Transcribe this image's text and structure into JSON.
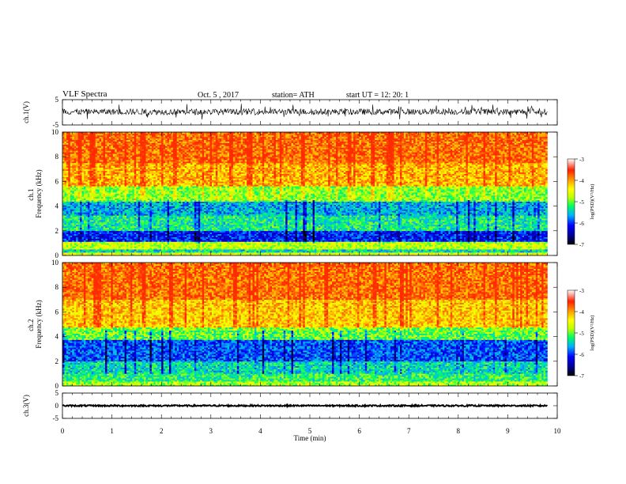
{
  "header": {
    "title": "VLF  Spectra",
    "date": "Oct. 5  , 2017",
    "station": "station= ATH",
    "start_ut": "start  UT  =   12: 20: 1"
  },
  "chart_data": [
    {
      "type": "line",
      "panel": "ch1-waveform",
      "ylabel": "ch.1(V)",
      "ylim": [
        -5,
        5
      ],
      "yticks": [
        "5",
        "-5"
      ],
      "xlim": [
        0,
        10
      ],
      "signal": {
        "baseline": 0.2,
        "amplitude_typical": 1.2,
        "amplitude_max": 3.2,
        "end_time": 9.8
      }
    },
    {
      "type": "heatmap",
      "panel": "ch1-spectrogram",
      "ylabel": "ch.1\nFrequency  (kHz)",
      "ylim": [
        0,
        10
      ],
      "yticks": [
        "0",
        "2",
        "4",
        "6",
        "8",
        "10"
      ],
      "xlim": [
        0,
        10
      ],
      "data_end_time": 9.8,
      "colorbar": {
        "label": "log(PSD)(V²/Hz)",
        "range": [
          -7,
          -3
        ],
        "ticks": [
          "-3",
          "-4",
          "-5",
          "-6",
          "-7"
        ]
      },
      "bands_log_psd": [
        {
          "f": [
            0,
            0.3
          ],
          "value": -4.6
        },
        {
          "f": [
            0.3,
            0.55
          ],
          "value": -5.4
        },
        {
          "f": [
            0.55,
            1.1
          ],
          "value": -4.7
        },
        {
          "f": [
            1.1,
            2.0
          ],
          "value": -6.1
        },
        {
          "f": [
            2.0,
            3.2
          ],
          "value": -5.3
        },
        {
          "f": [
            3.2,
            4.4
          ],
          "value": -5.6
        },
        {
          "f": [
            4.4,
            5.6
          ],
          "value": -4.9
        },
        {
          "f": [
            5.6,
            7.5
          ],
          "value": -4.1
        },
        {
          "f": [
            7.5,
            10.0
          ],
          "value": -3.8
        }
      ]
    },
    {
      "type": "heatmap",
      "panel": "ch2-spectrogram",
      "ylabel": "ch.2\nFrequency  (kHz)",
      "ylim": [
        0,
        10
      ],
      "yticks": [
        "0",
        "2",
        "4",
        "6",
        "8",
        "10"
      ],
      "xlim": [
        0,
        10
      ],
      "data_end_time": 9.8,
      "colorbar": {
        "label": "log(PSD)(V²/Hz)",
        "range": [
          -7,
          -3
        ],
        "ticks": [
          "-3",
          "-4",
          "-5",
          "-6",
          "-7"
        ]
      },
      "bands_log_psd": [
        {
          "f": [
            0,
            0.4
          ],
          "value": -4.8
        },
        {
          "f": [
            0.4,
            1.0
          ],
          "value": -5.2
        },
        {
          "f": [
            1.0,
            2.0
          ],
          "value": -5.4
        },
        {
          "f": [
            2.0,
            3.8
          ],
          "value": -5.9
        },
        {
          "f": [
            3.8,
            4.8
          ],
          "value": -5.0
        },
        {
          "f": [
            4.8,
            7.0
          ],
          "value": -4.2
        },
        {
          "f": [
            7.0,
            10.0
          ],
          "value": -3.8
        }
      ]
    },
    {
      "type": "line",
      "panel": "ch3-waveform",
      "ylabel": "ch.3(V)",
      "ylim": [
        -5,
        5
      ],
      "yticks": [
        "5",
        "0",
        "-5"
      ],
      "xlim": [
        0,
        10
      ],
      "xlabel": "Time  (min)",
      "xticks": [
        "0",
        "1",
        "2",
        "3",
        "4",
        "5",
        "6",
        "7",
        "8",
        "9",
        "10"
      ],
      "signal": {
        "baseline": 0.0,
        "amplitude_typical": 0.3,
        "end_time": 9.8
      }
    }
  ],
  "colors": {
    "colormap": [
      "#000000",
      "#000080",
      "#0000ff",
      "#00b0ff",
      "#00ff60",
      "#c0ff00",
      "#ffff00",
      "#ffa000",
      "#ff2000",
      "#ffffff"
    ],
    "axis": "#000000",
    "background": "#ffffff"
  }
}
